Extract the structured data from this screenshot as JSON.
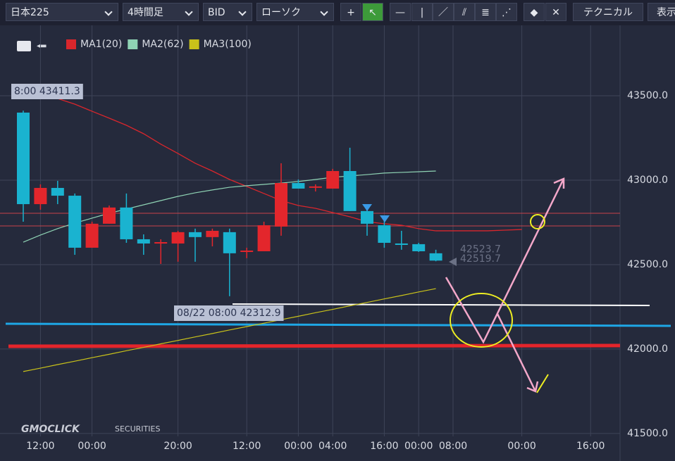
{
  "toolbar": {
    "symbol": "日本225",
    "timeframe": "4時間足",
    "side": "BID",
    "style": "ローソク",
    "technical": "テクニカル",
    "display": "表示"
  },
  "logo": {
    "brand": "GMOCLICK",
    "suffix": "SECURITIES"
  },
  "chart_data": {
    "type": "candlestick",
    "categories": [
      null,
      "12:00",
      null,
      null,
      "00:00",
      null,
      null,
      null,
      null,
      "20:00",
      null,
      null,
      null,
      "12:00",
      null,
      null,
      "00:00",
      null,
      "04:00",
      null,
      null,
      "16:00",
      null,
      "00:00",
      null,
      "08:00",
      null,
      null,
      null,
      "00:00",
      null,
      null,
      null,
      "16:00"
    ],
    "open": [
      43400,
      42858,
      42954,
      42908,
      42600,
      42742,
      42838,
      42650,
      42629,
      42625,
      42692,
      42663,
      42692,
      42579,
      42579,
      42725,
      42983,
      42958,
      42950,
      43054,
      42817,
      42733,
      42625,
      42621,
      42567,
      null,
      null,
      null,
      null,
      null,
      null,
      null,
      null,
      null
    ],
    "high": [
      43411.3,
      42975,
      42996,
      42921,
      42754,
      42850,
      42921,
      42679,
      42650,
      42700,
      42713,
      42713,
      42713,
      42600,
      42754,
      43100,
      43004,
      42975,
      43067,
      43192,
      42858,
      42767,
      42700,
      42629,
      42588,
      null,
      null,
      null,
      null,
      null,
      null,
      null,
      null,
      null
    ],
    "low": [
      42754,
      42825,
      42858,
      42558,
      42600,
      42742,
      42629,
      42558,
      42504,
      42517,
      42517,
      42608,
      42312.9,
      42538,
      42579,
      42671,
      42950,
      42933,
      42950,
      42817,
      42671,
      42600,
      42588,
      42575,
      42519.7,
      null,
      null,
      null,
      null,
      null,
      null,
      null,
      null,
      null
    ],
    "close": [
      42858,
      42954,
      42908,
      42600,
      42742,
      42838,
      42650,
      42625,
      42633,
      42692,
      42663,
      42700,
      42567,
      42583,
      42733,
      42983,
      42950,
      42963,
      43054,
      42817,
      42742,
      42629,
      42621,
      42579,
      42523.7,
      null,
      null,
      null,
      null,
      null,
      null,
      null,
      null,
      null
    ],
    "up_color": "#e3262c",
    "down_color": "#1ab3d0",
    "series": [
      {
        "name": "MA1(20)",
        "color": "#d9262c",
        "values": [
          43517,
          43504,
          43483,
          43450,
          43408,
          43367,
          43325,
          43275,
          43213,
          43158,
          43100,
          43054,
          43004,
          42963,
          42921,
          42879,
          42850,
          42833,
          42808,
          42783,
          42754,
          42742,
          42733,
          42713,
          42700,
          42700,
          42700,
          42700,
          42704,
          42708,
          null,
          null,
          null,
          null
        ]
      },
      {
        "name": "MA2(62)",
        "color": "#8fd3b4",
        "values": [
          42633,
          42675,
          42713,
          42746,
          42775,
          42804,
          42829,
          42854,
          42879,
          42904,
          42925,
          42942,
          42958,
          42967,
          42975,
          42983,
          42992,
          43004,
          43017,
          43025,
          43033,
          43042,
          43046,
          43050,
          43054,
          null,
          null,
          null,
          null,
          null,
          null,
          null,
          null,
          null
        ]
      },
      {
        "name": "MA3(100)",
        "color": "#c9c21a",
        "values": [
          41867,
          41887,
          41908,
          41928,
          41949,
          41969,
          41990,
          42010,
          42031,
          42051,
          42072,
          42092,
          42113,
          42133,
          42153,
          42174,
          42194,
          42215,
          42235,
          42256,
          42276,
          42297,
          42317,
          42338,
          42358,
          null,
          null,
          null,
          null,
          null,
          null,
          null,
          null,
          null
        ]
      }
    ],
    "annotations": [
      "8:00 43411.3",
      "08/22 08:00 42312.9"
    ],
    "ylim": [
      41483,
      43900
    ],
    "yticks": [
      {
        "value": 41500,
        "label": "41500.0"
      },
      {
        "value": 42000,
        "label": "42000.0"
      },
      {
        "value": 42500,
        "label": "42500.0"
      },
      {
        "value": 43000,
        "label": "43000.0"
      },
      {
        "value": 43500,
        "label": "43500.0"
      }
    ],
    "grid": true
  }
}
